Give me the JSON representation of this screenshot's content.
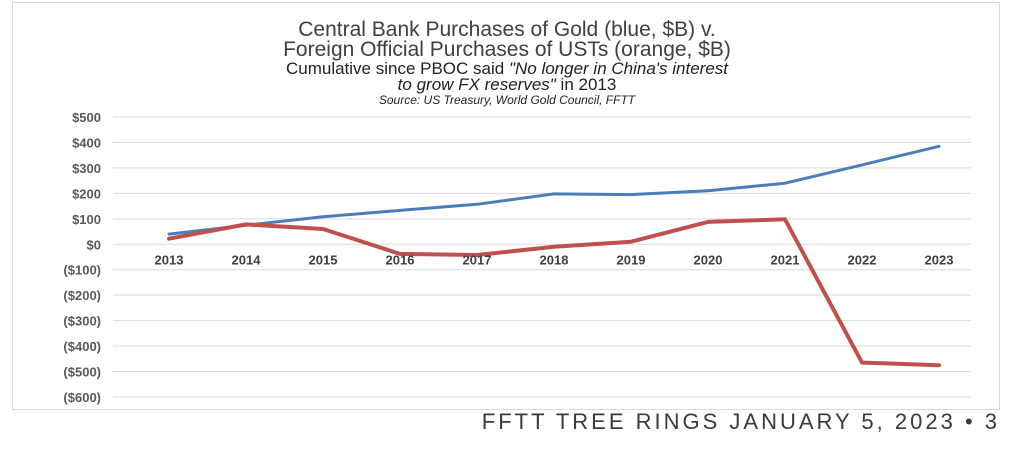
{
  "chart_data": {
    "type": "line",
    "title_line1": "Central Bank Purchases of Gold (blue, $B) v.",
    "title_line2": "Foreign Official Purchases of USTs (orange, $B)",
    "subtitle_prefix": "Cumulative since PBOC said ",
    "subtitle_quote_1": "\"No longer in China's interest",
    "subtitle_quote_2": "to grow FX reserves\"",
    "subtitle_suffix": " in 2013",
    "source": "Source: US Treasury, World Gold Council, FFTT",
    "categories": [
      "2013",
      "2014",
      "2015",
      "2016",
      "2017",
      "2018",
      "2019",
      "2020",
      "2021",
      "2022",
      "2023"
    ],
    "y_ticks": [
      {
        "value": 500,
        "label": "$500"
      },
      {
        "value": 400,
        "label": "$400"
      },
      {
        "value": 300,
        "label": "$300"
      },
      {
        "value": 200,
        "label": "$200"
      },
      {
        "value": 100,
        "label": "$100"
      },
      {
        "value": 0,
        "label": "$0"
      },
      {
        "value": -100,
        "label": "($100)"
      },
      {
        "value": -200,
        "label": "($200)"
      },
      {
        "value": -300,
        "label": "($300)"
      },
      {
        "value": -400,
        "label": "($400)"
      },
      {
        "value": -500,
        "label": "($500)"
      },
      {
        "value": -600,
        "label": "($600)"
      }
    ],
    "ylim": [
      -600,
      500
    ],
    "grid": true,
    "series": [
      {
        "key": "gold",
        "color": "#4a7ebb",
        "values": [
          40,
          75,
          108,
          133,
          157,
          198,
          195,
          210,
          240,
          312,
          385
        ]
      },
      {
        "key": "ust",
        "color": "#c0504d",
        "values": [
          22,
          78,
          60,
          -38,
          -42,
          -10,
          10,
          88,
          98,
          -465,
          -475
        ]
      }
    ]
  },
  "footer": {
    "text": "FFTT TREE RINGS JANUARY 5, 2023 • 3"
  }
}
